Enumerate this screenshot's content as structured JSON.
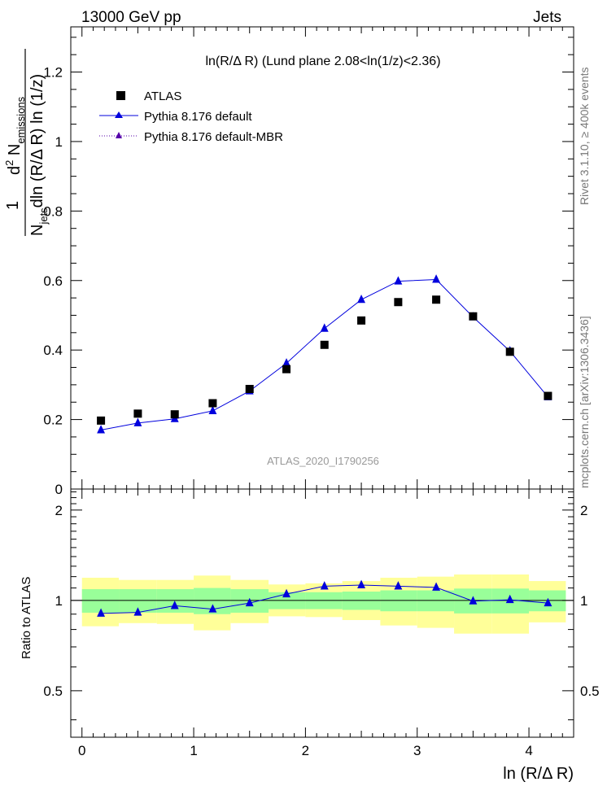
{
  "header": {
    "left": "13000 GeV pp",
    "right": "Jets"
  },
  "side_labels": {
    "rivet": "Rivet 3.1.10, ≥ 400k events",
    "mcplots": "mcplots.cern.ch [arXiv:1306.3436]"
  },
  "chart_data": {
    "type": "scatter",
    "title": "ln(R/Δ R) (Lund plane 2.08<ln(1/z)<2.36)",
    "watermark": "ATLAS_2020_I1790256",
    "xlabel": "ln (R/Δ R)",
    "ylabel_main": "1/N_jets d²N_emissions / dln(R/Δ R) ln(1/z)",
    "ylabel_main_parts": {
      "frac_num": "1",
      "frac_den_base": "N",
      "frac_den_sub": "jets",
      "d2": "d",
      "d2_sup": "2",
      "n": " N",
      "n_sub": "emissions",
      "den_text": "dln (R/Δ R) ln (1/z)"
    },
    "ylabel_ratio": "Ratio to ATLAS",
    "xlim": [
      -0.1,
      4.4
    ],
    "ylim_main": [
      0,
      1.33
    ],
    "ylim_ratio": [
      0.35,
      2.35
    ],
    "x_ticks": [
      0,
      1,
      2,
      3,
      4
    ],
    "x_tick_labels": [
      "0",
      "1",
      "2",
      "3",
      "4"
    ],
    "y_ticks_main": [
      0,
      0.2,
      0.4,
      0.6,
      0.8,
      1,
      1.2
    ],
    "y_tick_labels_main": [
      "0",
      "0.2",
      "0.4",
      "0.6",
      "0.8",
      "1",
      "1.2"
    ],
    "y_ticks_ratio": [
      0.5,
      1,
      2
    ],
    "y_tick_labels_ratio": [
      "0.5",
      "1",
      "2"
    ],
    "x": [
      0.17,
      0.5,
      0.83,
      1.17,
      1.5,
      1.83,
      2.17,
      2.5,
      2.83,
      3.17,
      3.5,
      3.83,
      4.17
    ],
    "bin_edges": [
      0,
      0.33,
      0.67,
      1.0,
      1.33,
      1.67,
      2.0,
      2.33,
      2.67,
      3.0,
      3.33,
      3.67,
      4.0,
      4.33
    ],
    "series": [
      {
        "name": "ATLAS",
        "color": "#000000",
        "marker": "square",
        "values": [
          0.197,
          0.217,
          0.215,
          0.247,
          0.288,
          0.345,
          0.415,
          0.485,
          0.538,
          0.545,
          0.497,
          0.395,
          0.268
        ]
      },
      {
        "name": "Pythia 8.176 default",
        "color": "#0000dd",
        "marker": "triangle",
        "line": "solid",
        "values": [
          0.17,
          0.19,
          0.202,
          0.225,
          0.282,
          0.362,
          0.462,
          0.545,
          0.598,
          0.603,
          0.495,
          0.397,
          0.265
        ],
        "errors": [
          0.003,
          0.003,
          0.003,
          0.003,
          0.004,
          0.005,
          0.005,
          0.006,
          0.007,
          0.007,
          0.006,
          0.005,
          0.004
        ],
        "ratio": [
          0.905,
          0.912,
          0.96,
          0.935,
          0.98,
          1.05,
          1.115,
          1.125,
          1.115,
          1.105,
          0.995,
          1.005,
          0.98
        ],
        "ratio_errors": [
          0.02,
          0.02,
          0.02,
          0.02,
          0.015,
          0.015,
          0.015,
          0.015,
          0.015,
          0.015,
          0.015,
          0.015,
          0.015
        ]
      },
      {
        "name": "Pythia 8.176 default-MBR",
        "color": "#5500aa",
        "marker": "triangle",
        "line": "dotted",
        "values": []
      }
    ],
    "band_inner": {
      "color": "#99ff99",
      "lower": [
        0.91,
        0.91,
        0.91,
        0.9,
        0.91,
        0.935,
        0.935,
        0.93,
        0.92,
        0.92,
        0.905,
        0.905,
        0.92
      ],
      "upper": [
        1.09,
        1.09,
        1.09,
        1.1,
        1.09,
        1.065,
        1.065,
        1.07,
        1.08,
        1.08,
        1.095,
        1.095,
        1.08
      ]
    },
    "band_outer": {
      "color": "#ffff99",
      "lower": [
        0.82,
        0.84,
        0.835,
        0.795,
        0.84,
        0.885,
        0.88,
        0.86,
        0.825,
        0.81,
        0.775,
        0.775,
        0.845
      ],
      "upper": [
        1.19,
        1.17,
        1.17,
        1.21,
        1.17,
        1.13,
        1.14,
        1.16,
        1.19,
        1.2,
        1.22,
        1.22,
        1.16
      ]
    },
    "legend_position": "top-left",
    "grid": false
  }
}
